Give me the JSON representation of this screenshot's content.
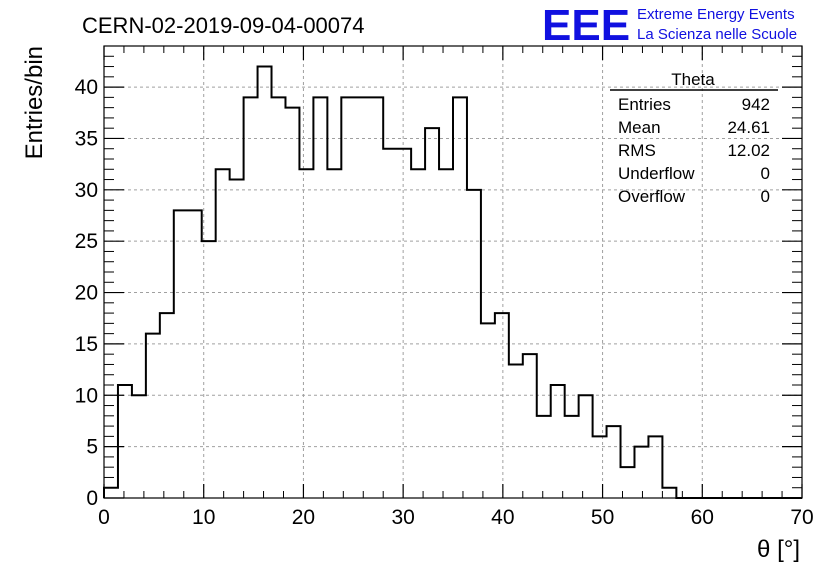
{
  "chart_data": {
    "type": "bar",
    "title": "CERN-02-2019-09-04-00074",
    "xlabel": "θ [°]",
    "ylabel": "Entries/bin",
    "xlim": [
      0,
      70
    ],
    "ylim": [
      0,
      44
    ],
    "bin_width": 1.4,
    "x_ticks": [
      0,
      10,
      20,
      30,
      40,
      50,
      60,
      70
    ],
    "y_ticks": [
      0,
      5,
      10,
      15,
      20,
      25,
      30,
      35,
      40
    ],
    "grid": true,
    "values": [
      1,
      11,
      10,
      16,
      18,
      28,
      28,
      25,
      32,
      31,
      39,
      42,
      39,
      38,
      32,
      39,
      32,
      39,
      39,
      39,
      34,
      34,
      32,
      36,
      32,
      39,
      30,
      17,
      18,
      13,
      14,
      8,
      11,
      8,
      10,
      6,
      7,
      3,
      5,
      6,
      1,
      0,
      0,
      0,
      0,
      0,
      0,
      0,
      0,
      0
    ],
    "stats_box": {
      "name": "Theta",
      "rows": [
        {
          "label": "Entries",
          "value": "942"
        },
        {
          "label": "Mean",
          "value": "24.61"
        },
        {
          "label": "RMS",
          "value": "12.02"
        },
        {
          "label": "Underflow",
          "value": "0"
        },
        {
          "label": "Overflow",
          "value": "0"
        }
      ],
      "placement": "top-right"
    }
  },
  "logo": {
    "mark": "EEE",
    "line1": "Extreme Energy Events",
    "line2": "La Scienza nelle Scuole",
    "color": "#1010e0"
  },
  "colors": {
    "histogram_line": "#000000",
    "grid": "#a0a0a0"
  }
}
